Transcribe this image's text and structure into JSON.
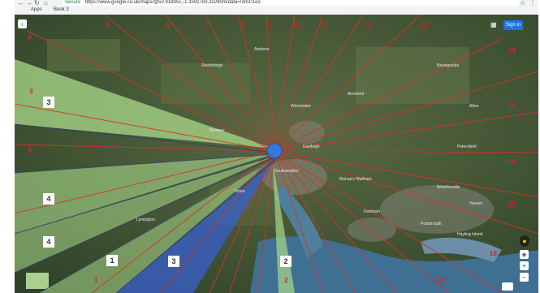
{
  "browser": {
    "secure_label": "Secure",
    "url": "https://www.google.co.uk/maps/@50.918951,-1.3591783,32280m/data=!3m1!1e3",
    "bookmarks": [
      "Apps",
      "Book 3"
    ],
    "back_icon": "back-arrow-icon",
    "forward_icon": "forward-arrow-icon",
    "reload_icon": "reload-icon"
  },
  "map": {
    "signin_label": "Sign in",
    "apps_icon": "grid-apps-icon",
    "expand_icon": "chevron-left-icon",
    "center_marker_color": "#3a78d8",
    "ray_color": "#d8322a",
    "zone_green": "#9ad07a",
    "zone_blue": "#3a5fcf",
    "zone_labels": [
      "3",
      "4",
      "4",
      "1",
      "3",
      "2"
    ],
    "ray_numbers": [
      "4",
      "5",
      "6",
      "7",
      "8",
      "9",
      "10",
      "11",
      "12",
      "13",
      "14",
      "15",
      "16",
      "17",
      "18",
      "19",
      "4",
      "3",
      "2",
      "1"
    ],
    "towns": [
      "Winchester",
      "Southampton",
      "Alresford",
      "Romsey",
      "Eastleigh",
      "Fareham",
      "Portsmouth",
      "Havant",
      "Waterlooville",
      "Hayling Island",
      "Stockbridge",
      "Andover",
      "Basingstoke",
      "Alton",
      "Petersfield",
      "Bishop's Waltham",
      "Lymington",
      "Totton"
    ]
  },
  "controls": {
    "zoom_in": "+",
    "zoom_out": "−",
    "compass_icon": "compass-icon",
    "pegman_icon": "pegman-icon",
    "layers_icon": "layers-thumbnail-icon"
  }
}
